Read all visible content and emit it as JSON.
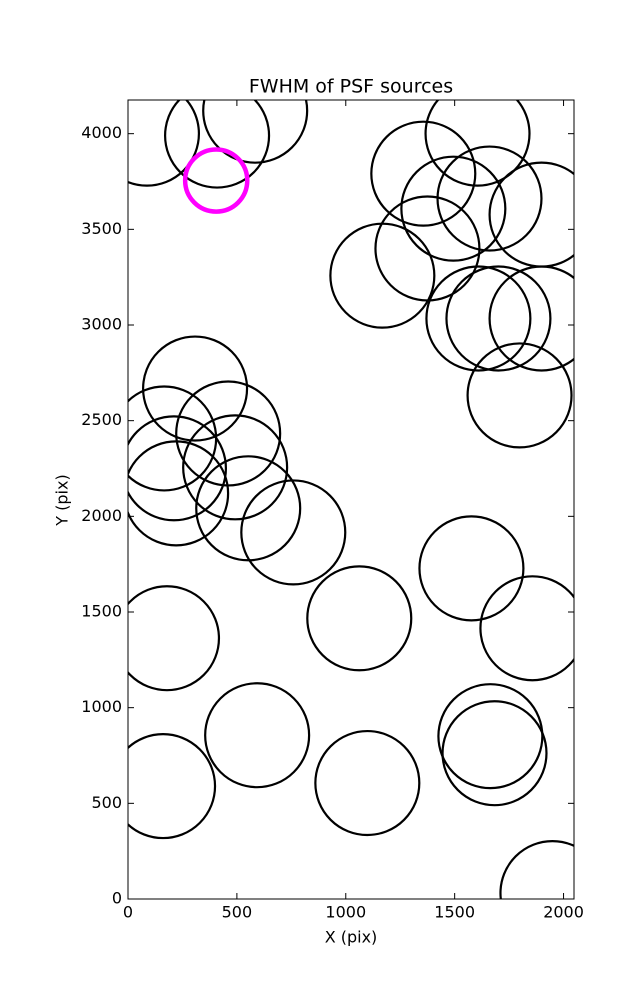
{
  "chart_data": {
    "type": "scatter",
    "title": "FWHM of PSF sources",
    "x_label": "X (pix)",
    "y_label": "Y (pix)",
    "xlim": [
      0,
      2048
    ],
    "ylim": [
      0,
      4176
    ],
    "xticks": [
      0,
      500,
      1000,
      1500,
      2000
    ],
    "yticks": [
      0,
      500,
      1000,
      1500,
      2000,
      2500,
      3000,
      3500,
      4000
    ],
    "grid": false,
    "series": [
      {
        "color": "#000000",
        "marker_size": 5600,
        "x": [
          87,
          409,
          584,
          1356,
          1605,
          1494,
          1660,
          1899,
          1375,
          1168,
          1609,
          1701,
          1899,
          1798,
          308,
          166,
          460,
          211,
          492,
          221,
          552,
          759,
          1062,
          1577,
          1857,
          179,
          593,
          161,
          1099,
          1664,
          1683,
          1949
        ],
        "values": [
          4000,
          3990,
          4120,
          3791,
          4000,
          3608,
          3661,
          3577,
          3400,
          3258,
          3034,
          3034,
          3034,
          2632,
          2668,
          2407,
          2433,
          2251,
          2256,
          2120,
          2042,
          1916,
          1467,
          1728,
          1415,
          1363,
          856,
          590,
          606,
          851,
          762,
          31
        ]
      },
      {
        "color": "#ff00ff",
        "marker_size": 2000,
        "x": [
          405
        ],
        "values": [
          3755
        ]
      }
    ]
  }
}
